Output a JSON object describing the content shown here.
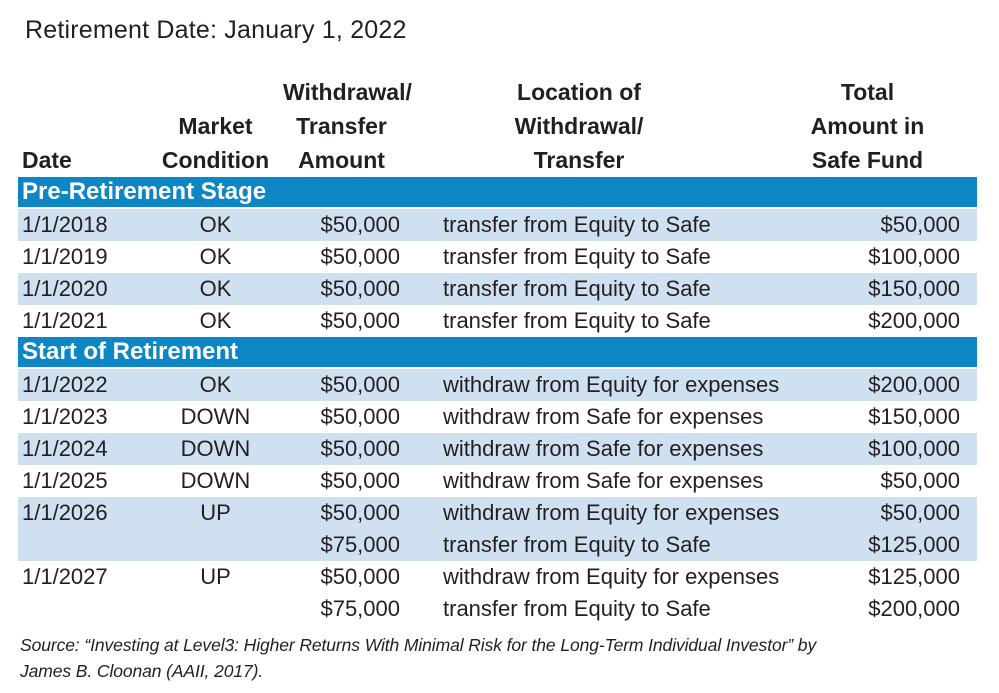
{
  "title": "Retirement Date: January 1, 2022",
  "colors": {
    "section_band_blue": "#0d86c5",
    "row_shade_blue": "#cfe0f1",
    "text": "#231f20"
  },
  "table": {
    "headers": [
      {
        "lines": [
          "Date"
        ]
      },
      {
        "lines": [
          "Market",
          "Condition"
        ]
      },
      {
        "lines": [
          "Withdrawal/",
          "Transfer",
          "Amount"
        ]
      },
      {
        "lines": [
          "Location of",
          "Withdrawal/",
          "Transfer"
        ]
      },
      {
        "lines": [
          "Total",
          "Amount in",
          "Safe Fund"
        ]
      }
    ],
    "sections": [
      {
        "label": "Pre-Retirement Stage",
        "rows": [
          {
            "date": "1/1/2018",
            "condition": "OK",
            "amount": "$50,000",
            "location": "transfer from Equity to Safe",
            "total": "$50,000"
          },
          {
            "date": "1/1/2019",
            "condition": "OK",
            "amount": "$50,000",
            "location": "transfer from Equity to Safe",
            "total": "$100,000"
          },
          {
            "date": "1/1/2020",
            "condition": "OK",
            "amount": "$50,000",
            "location": "transfer from Equity to Safe",
            "total": "$150,000"
          },
          {
            "date": "1/1/2021",
            "condition": "OK",
            "amount": "$50,000",
            "location": "transfer from Equity to Safe",
            "total": "$200,000"
          }
        ]
      },
      {
        "label": "Start of Retirement",
        "rows": [
          {
            "date": "1/1/2022",
            "condition": "OK",
            "amount": "$50,000",
            "location": "withdraw from Equity for expenses",
            "total": "$200,000"
          },
          {
            "date": "1/1/2023",
            "condition": "DOWN",
            "amount": "$50,000",
            "location": "withdraw from Safe for expenses",
            "total": "$150,000"
          },
          {
            "date": "1/1/2024",
            "condition": "DOWN",
            "amount": "$50,000",
            "location": "withdraw from Safe for expenses",
            "total": "$100,000"
          },
          {
            "date": "1/1/2025",
            "condition": "DOWN",
            "amount": "$50,000",
            "location": "withdraw from Safe for expenses",
            "total": "$50,000"
          },
          {
            "date": "1/1/2026",
            "condition": "UP",
            "amount": "$50,000",
            "location": "withdraw from Equity for expenses",
            "total": "$50,000",
            "extra": {
              "amount": "$75,000",
              "location": "transfer from Equity to Safe",
              "total": "$125,000"
            }
          },
          {
            "date": "1/1/2027",
            "condition": "UP",
            "amount": "$50,000",
            "location": "withdraw from Equity for expenses",
            "total": "$125,000",
            "extra": {
              "amount": "$75,000",
              "location": "transfer from Equity to Safe",
              "total": "$200,000"
            }
          }
        ]
      }
    ]
  },
  "source": {
    "line1": "Source: “Investing at Level3: Higher Returns With Minimal Risk for the Long-Term Individual Investor” by",
    "line2": "James B. Cloonan (AAII, 2017)."
  }
}
